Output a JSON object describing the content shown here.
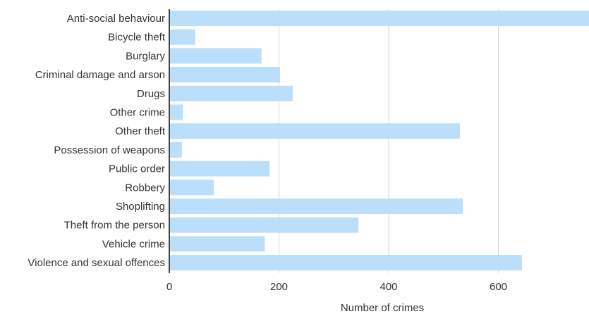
{
  "chart_data": {
    "type": "bar",
    "orientation": "horizontal",
    "categories": [
      "Anti-social behaviour",
      "Bicycle theft",
      "Burglary",
      "Criminal damage and arson",
      "Drugs",
      "Other crime",
      "Other theft",
      "Possession of weapons",
      "Public order",
      "Robbery",
      "Shoplifting",
      "Theft from the person",
      "Vehicle crime",
      "Violence and sexual offences"
    ],
    "values": [
      790,
      47,
      168,
      202,
      225,
      25,
      530,
      23,
      183,
      81,
      535,
      345,
      174,
      643
    ],
    "xlabel": "Number of crimes",
    "ylabel": "",
    "xticks": [
      0,
      200,
      400,
      600
    ],
    "xlim": [
      0,
      765
    ],
    "grid": "vertical",
    "legend": "none",
    "colors": {
      "bar": "#bbdefb",
      "grid": "#d6d6d6",
      "axis": "#444444",
      "text": "#333333"
    }
  }
}
